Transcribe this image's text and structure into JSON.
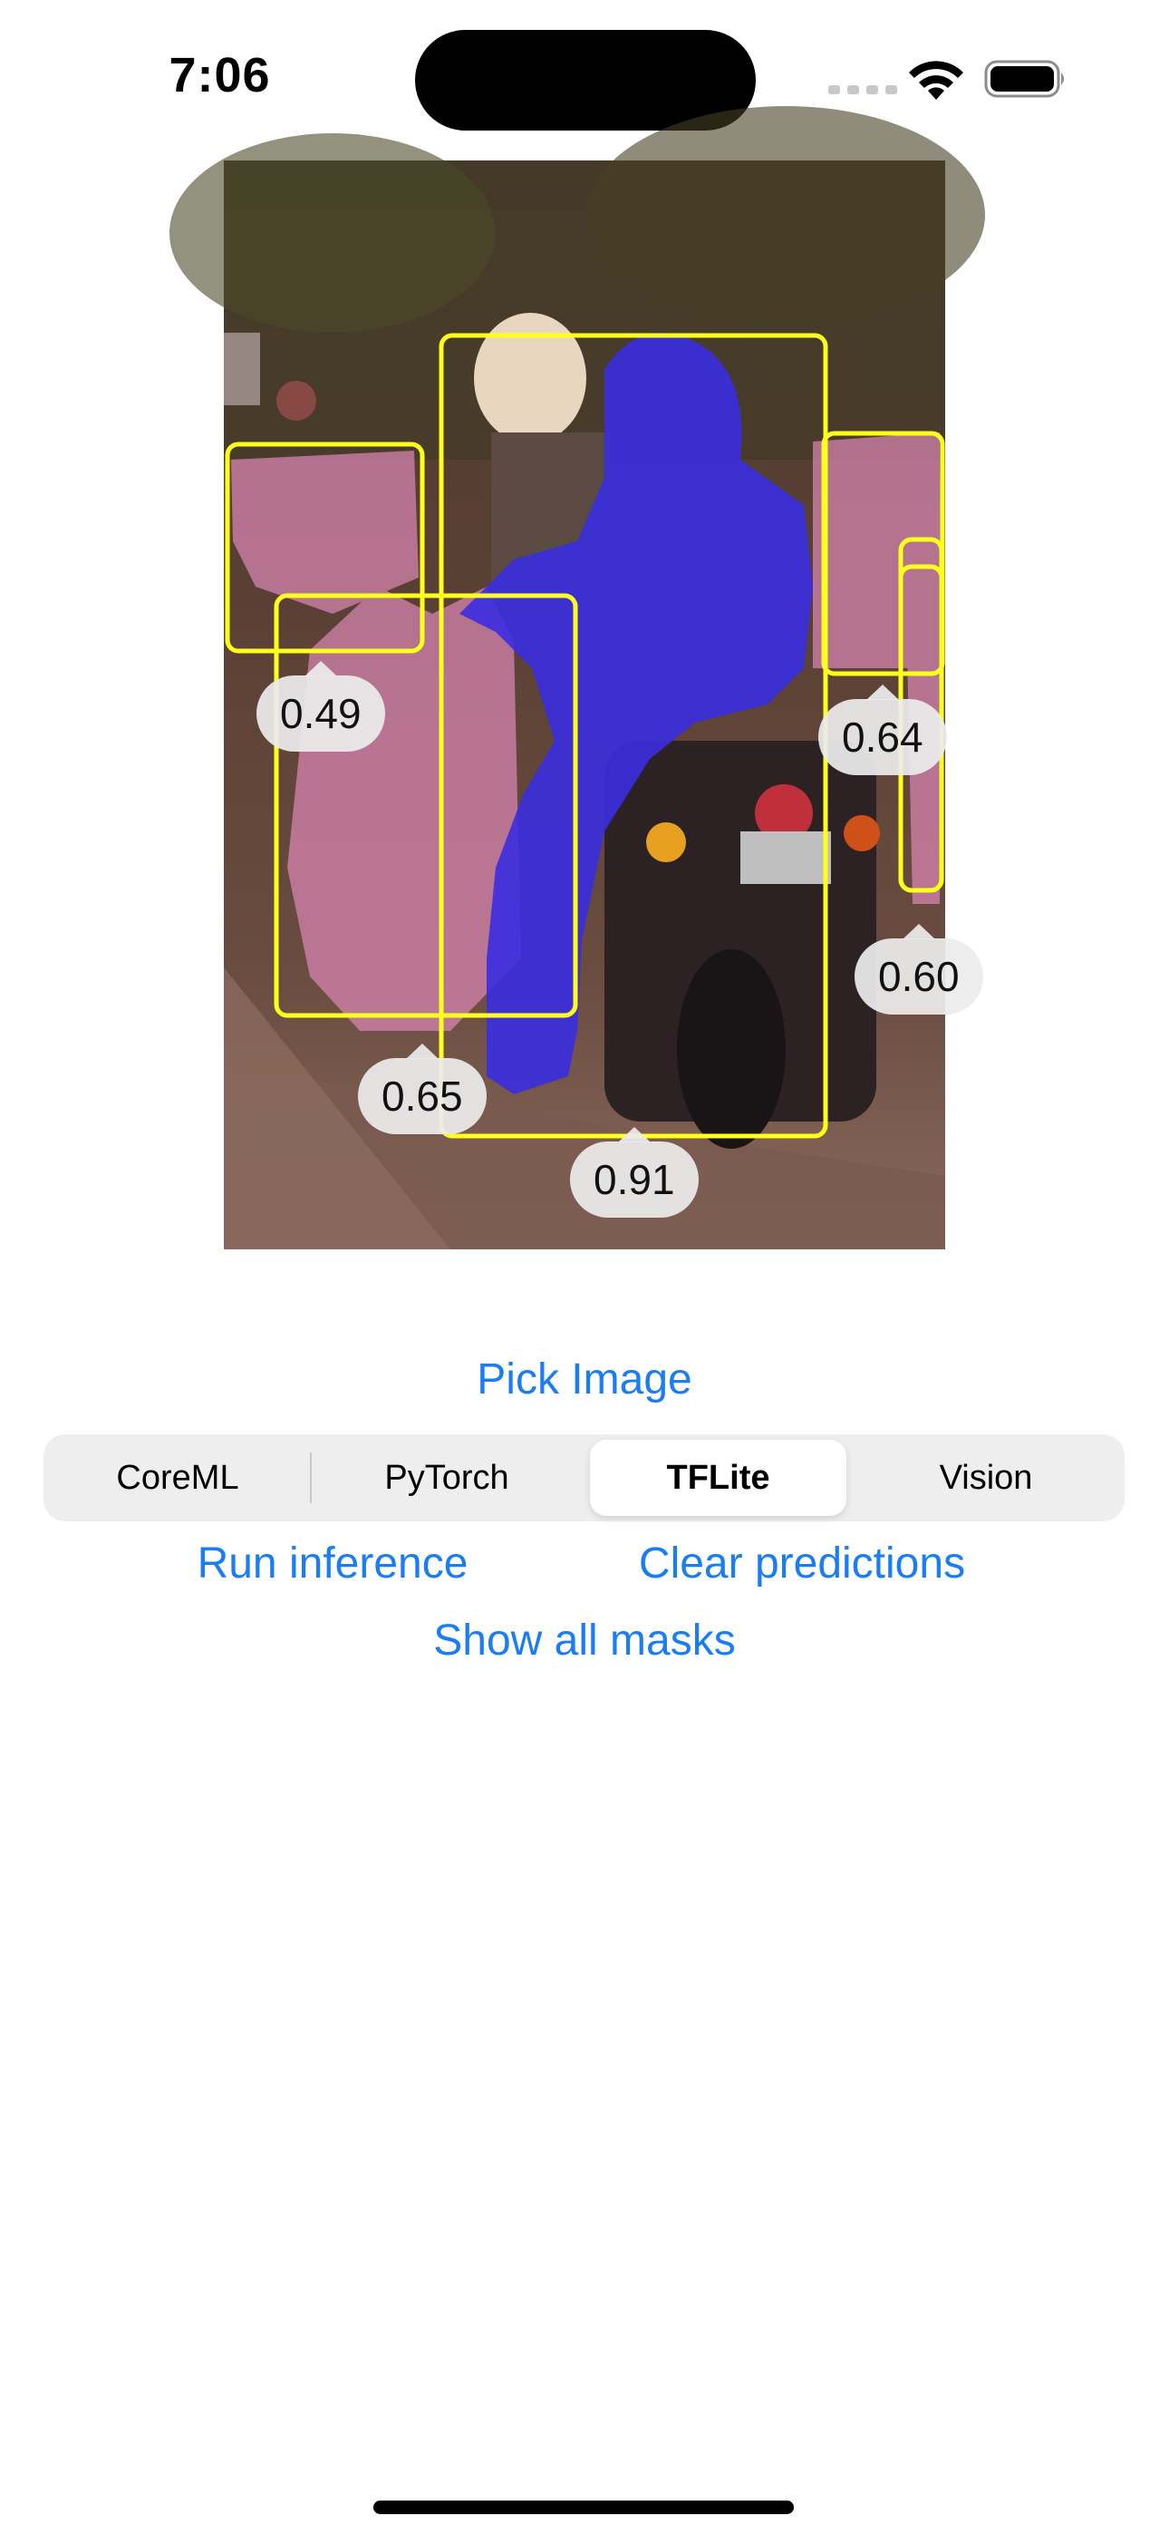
{
  "status_bar": {
    "time": "7:06",
    "icons": [
      "cellular-signal-icon",
      "wifi-icon",
      "battery-icon"
    ]
  },
  "image_view": {
    "detections": [
      {
        "score": "0.91",
        "mask_color": "#3a2ee0"
      },
      {
        "score": "0.65",
        "mask_color": "#d987b4"
      },
      {
        "score": "0.49",
        "mask_color": "#d987b4"
      },
      {
        "score": "0.64",
        "mask_color": "#d987b4"
      },
      {
        "score": "0.60",
        "mask_color": "#d987b4"
      }
    ],
    "box_color": "#ffff1e"
  },
  "actions": {
    "pick_image": "Pick Image",
    "run_inference": "Run inference",
    "clear_predictions": "Clear predictions",
    "show_all_masks": "Show all masks"
  },
  "backend_selector": {
    "options": [
      "CoreML",
      "PyTorch",
      "TFLite",
      "Vision"
    ],
    "selected": "TFLite"
  },
  "colors": {
    "accent": "#1a7df2",
    "segment_background": "#eeeeef"
  }
}
